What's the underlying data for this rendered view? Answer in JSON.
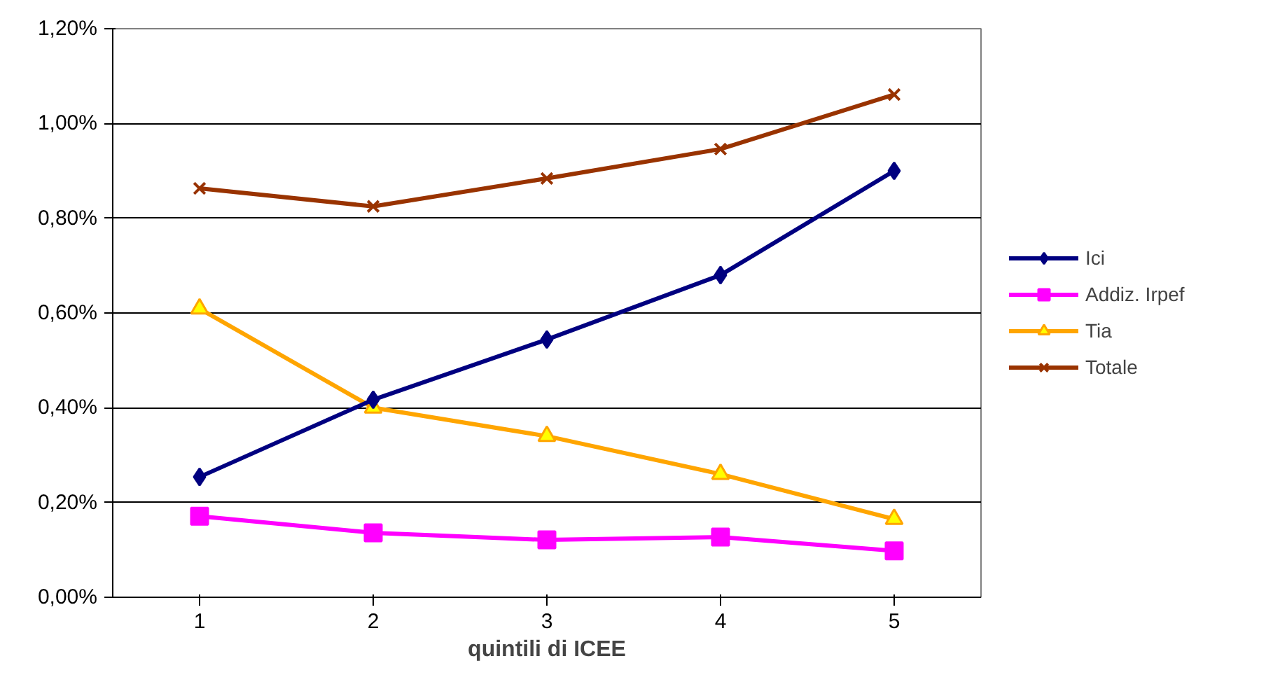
{
  "chart_data": {
    "type": "line",
    "xlabel": "quintili di ICEE",
    "categories": [
      "1",
      "2",
      "3",
      "4",
      "5"
    ],
    "ylim": [
      0,
      1.2
    ],
    "yticks": [
      {
        "value": 0,
        "label": "0,00%"
      },
      {
        "value": 0.2,
        "label": "0,20%"
      },
      {
        "value": 0.4,
        "label": "0,40%"
      },
      {
        "value": 0.6,
        "label": "0,60%"
      },
      {
        "value": 0.8,
        "label": "0,80%"
      },
      {
        "value": 1.0,
        "label": "1,00%"
      },
      {
        "value": 1.2,
        "label": "1,20%"
      }
    ],
    "grid": "y",
    "legend": "right",
    "series": [
      {
        "name": "Ici",
        "color": "#000080",
        "marker": "diamond",
        "values": [
          0.254,
          0.417,
          0.544,
          0.68,
          0.9
        ]
      },
      {
        "name": "Addiz. Irpef",
        "color": "#ff00ff",
        "marker": "square",
        "values": [
          0.171,
          0.136,
          0.121,
          0.127,
          0.098
        ]
      },
      {
        "name": "Tia",
        "color": "#ffa500",
        "marker": "triangle",
        "values": [
          0.609,
          0.4,
          0.34,
          0.26,
          0.165
        ]
      },
      {
        "name": "Totale",
        "color": "#993300",
        "marker": "cross",
        "values": [
          0.863,
          0.825,
          0.884,
          0.946,
          1.061
        ]
      }
    ]
  }
}
